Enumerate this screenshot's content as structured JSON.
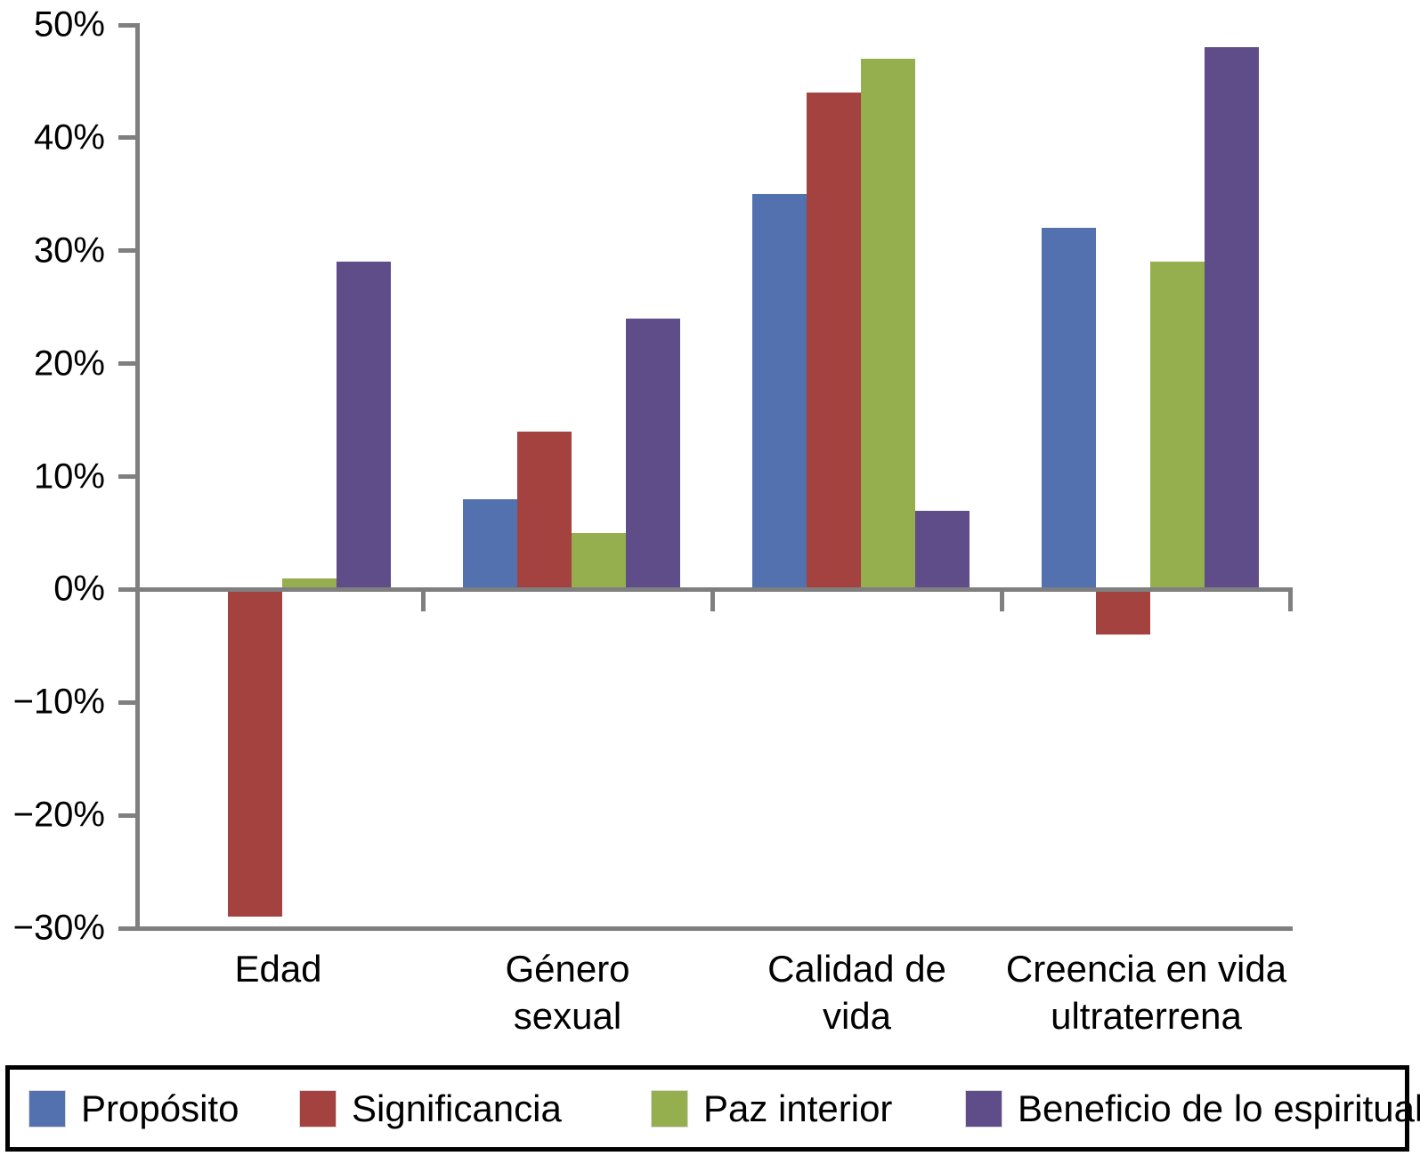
{
  "chart_data": {
    "type": "bar",
    "title": "",
    "xlabel": "",
    "ylabel": "",
    "ylim": [
      -30,
      50
    ],
    "ytick_step": 10,
    "ytick_labels": [
      "50%",
      "40%",
      "30%",
      "20%",
      "10%",
      "0%",
      "−10%",
      "−20%",
      "−30%"
    ],
    "grid": false,
    "legend_position": "bottom",
    "axis_color": "#7f7f7f",
    "categories": [
      [
        "Edad"
      ],
      [
        "Género",
        "sexual"
      ],
      [
        "Calidad de",
        "vida"
      ],
      [
        "Creencia en vida",
        "ultraterrena"
      ]
    ],
    "series": [
      {
        "key": "proposito",
        "name": "Propósito",
        "color": "#5271AE",
        "values": [
          0,
          8,
          35,
          32
        ]
      },
      {
        "key": "significancia",
        "name": "Significancia",
        "color": "#A3423E",
        "values": [
          -29,
          14,
          44,
          -4
        ]
      },
      {
        "key": "paz-interior",
        "name": "Paz interior",
        "color": "#95AE4E",
        "values": [
          1,
          5,
          47,
          29
        ]
      },
      {
        "key": "beneficio-espiritual",
        "name": "Beneficio de lo espiritual",
        "color": "#5F4D8A",
        "values": [
          29,
          24,
          7,
          48
        ]
      }
    ]
  }
}
